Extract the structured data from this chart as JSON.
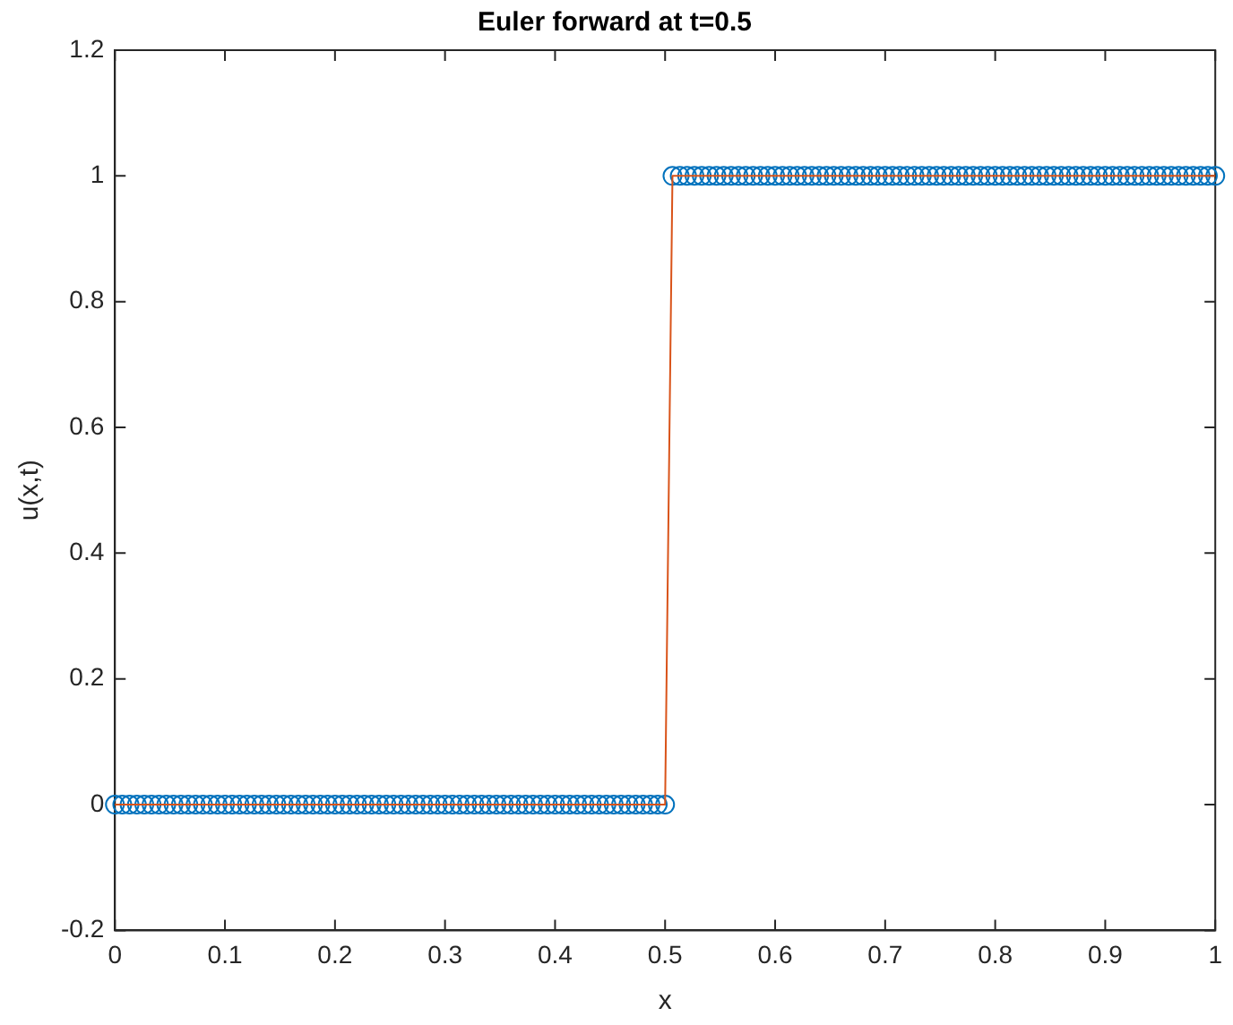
{
  "chart_data": {
    "type": "line",
    "title": "Euler forward at t=0.5",
    "xlabel": "x",
    "ylabel": "u(x,t)",
    "x": [
      0,
      0.0067,
      0.0133,
      0.02,
      0.0267,
      0.0333,
      0.04,
      0.0467,
      0.0533,
      0.06,
      0.0667,
      0.0733,
      0.08,
      0.0867,
      0.0933,
      0.1,
      0.1067,
      0.1133,
      0.12,
      0.1267,
      0.1333,
      0.14,
      0.1467,
      0.1533,
      0.16,
      0.1667,
      0.1733,
      0.18,
      0.1867,
      0.1933,
      0.2,
      0.2067,
      0.2133,
      0.22,
      0.2267,
      0.2333,
      0.24,
      0.2467,
      0.2533,
      0.26,
      0.2667,
      0.2733,
      0.28,
      0.2867,
      0.2933,
      0.3,
      0.3067,
      0.3133,
      0.32,
      0.3267,
      0.3333,
      0.34,
      0.3467,
      0.3533,
      0.36,
      0.3667,
      0.3733,
      0.38,
      0.3867,
      0.3933,
      0.4,
      0.4067,
      0.4133,
      0.42,
      0.4267,
      0.4333,
      0.44,
      0.4467,
      0.4533,
      0.46,
      0.4667,
      0.4733,
      0.48,
      0.4867,
      0.4933,
      0.5,
      0.5067,
      0.5133,
      0.52,
      0.5267,
      0.5333,
      0.54,
      0.5467,
      0.5533,
      0.56,
      0.5667,
      0.5733,
      0.58,
      0.5867,
      0.5933,
      0.6,
      0.6067,
      0.6133,
      0.62,
      0.6267,
      0.6333,
      0.64,
      0.6467,
      0.6533,
      0.66,
      0.6667,
      0.6733,
      0.68,
      0.6867,
      0.6933,
      0.7,
      0.7067,
      0.7133,
      0.72,
      0.7267,
      0.7333,
      0.74,
      0.7467,
      0.7533,
      0.76,
      0.7667,
      0.7733,
      0.78,
      0.7867,
      0.7933,
      0.8,
      0.8067,
      0.8133,
      0.82,
      0.8267,
      0.8333,
      0.84,
      0.8467,
      0.8533,
      0.86,
      0.8667,
      0.8733,
      0.88,
      0.8867,
      0.8933,
      0.9,
      0.9067,
      0.9133,
      0.92,
      0.9267,
      0.9333,
      0.94,
      0.9467,
      0.9533,
      0.96,
      0.9667,
      0.9733,
      0.98,
      0.9867,
      0.9933,
      1
    ],
    "series": [
      {
        "type": "scatter",
        "marker": "circle",
        "color": "#0072bd",
        "values": [
          0,
          0,
          0,
          0,
          0,
          0,
          0,
          0,
          0,
          0,
          0,
          0,
          0,
          0,
          0,
          0,
          0,
          0,
          0,
          0,
          0,
          0,
          0,
          0,
          0,
          0,
          0,
          0,
          0,
          0,
          0,
          0,
          0,
          0,
          0,
          0,
          0,
          0,
          0,
          0,
          0,
          0,
          0,
          0,
          0,
          0,
          0,
          0,
          0,
          0,
          0,
          0,
          0,
          0,
          0,
          0,
          0,
          0,
          0,
          0,
          0,
          0,
          0,
          0,
          0,
          0,
          0,
          0,
          0,
          0,
          0,
          0,
          0,
          0,
          0,
          0,
          1,
          1,
          1,
          1,
          1,
          1,
          1,
          1,
          1,
          1,
          1,
          1,
          1,
          1,
          1,
          1,
          1,
          1,
          1,
          1,
          1,
          1,
          1,
          1,
          1,
          1,
          1,
          1,
          1,
          1,
          1,
          1,
          1,
          1,
          1,
          1,
          1,
          1,
          1,
          1,
          1,
          1,
          1,
          1,
          1,
          1,
          1,
          1,
          1,
          1,
          1,
          1,
          1,
          1,
          1,
          1,
          1,
          1,
          1,
          1,
          1,
          1,
          1,
          1,
          1,
          1,
          1,
          1,
          1,
          1,
          1,
          1,
          1,
          1,
          1
        ]
      },
      {
        "type": "line",
        "marker": "none",
        "color": "#d95319",
        "values": [
          0,
          0,
          0,
          0,
          0,
          0,
          0,
          0,
          0,
          0,
          0,
          0,
          0,
          0,
          0,
          0,
          0,
          0,
          0,
          0,
          0,
          0,
          0,
          0,
          0,
          0,
          0,
          0,
          0,
          0,
          0,
          0,
          0,
          0,
          0,
          0,
          0,
          0,
          0,
          0,
          0,
          0,
          0,
          0,
          0,
          0,
          0,
          0,
          0,
          0,
          0,
          0,
          0,
          0,
          0,
          0,
          0,
          0,
          0,
          0,
          0,
          0,
          0,
          0,
          0,
          0,
          0,
          0,
          0,
          0,
          0,
          0,
          0,
          0,
          0,
          0,
          1,
          1,
          1,
          1,
          1,
          1,
          1,
          1,
          1,
          1,
          1,
          1,
          1,
          1,
          1,
          1,
          1,
          1,
          1,
          1,
          1,
          1,
          1,
          1,
          1,
          1,
          1,
          1,
          1,
          1,
          1,
          1,
          1,
          1,
          1,
          1,
          1,
          1,
          1,
          1,
          1,
          1,
          1,
          1,
          1,
          1,
          1,
          1,
          1,
          1,
          1,
          1,
          1,
          1,
          1,
          1,
          1,
          1,
          1,
          1,
          1,
          1,
          1,
          1,
          1,
          1,
          1,
          1,
          1,
          1,
          1,
          1,
          1,
          1,
          1
        ]
      }
    ],
    "xlim": [
      0,
      1
    ],
    "xticks": [
      0,
      0.1,
      0.2,
      0.3,
      0.4,
      0.5,
      0.6,
      0.7,
      0.8,
      0.9,
      1
    ],
    "ylim": [
      -0.2,
      1.2
    ],
    "yticks": [
      -0.2,
      0,
      0.2,
      0.4,
      0.6,
      0.8,
      1,
      1.2
    ],
    "grid": false,
    "legend": false
  }
}
